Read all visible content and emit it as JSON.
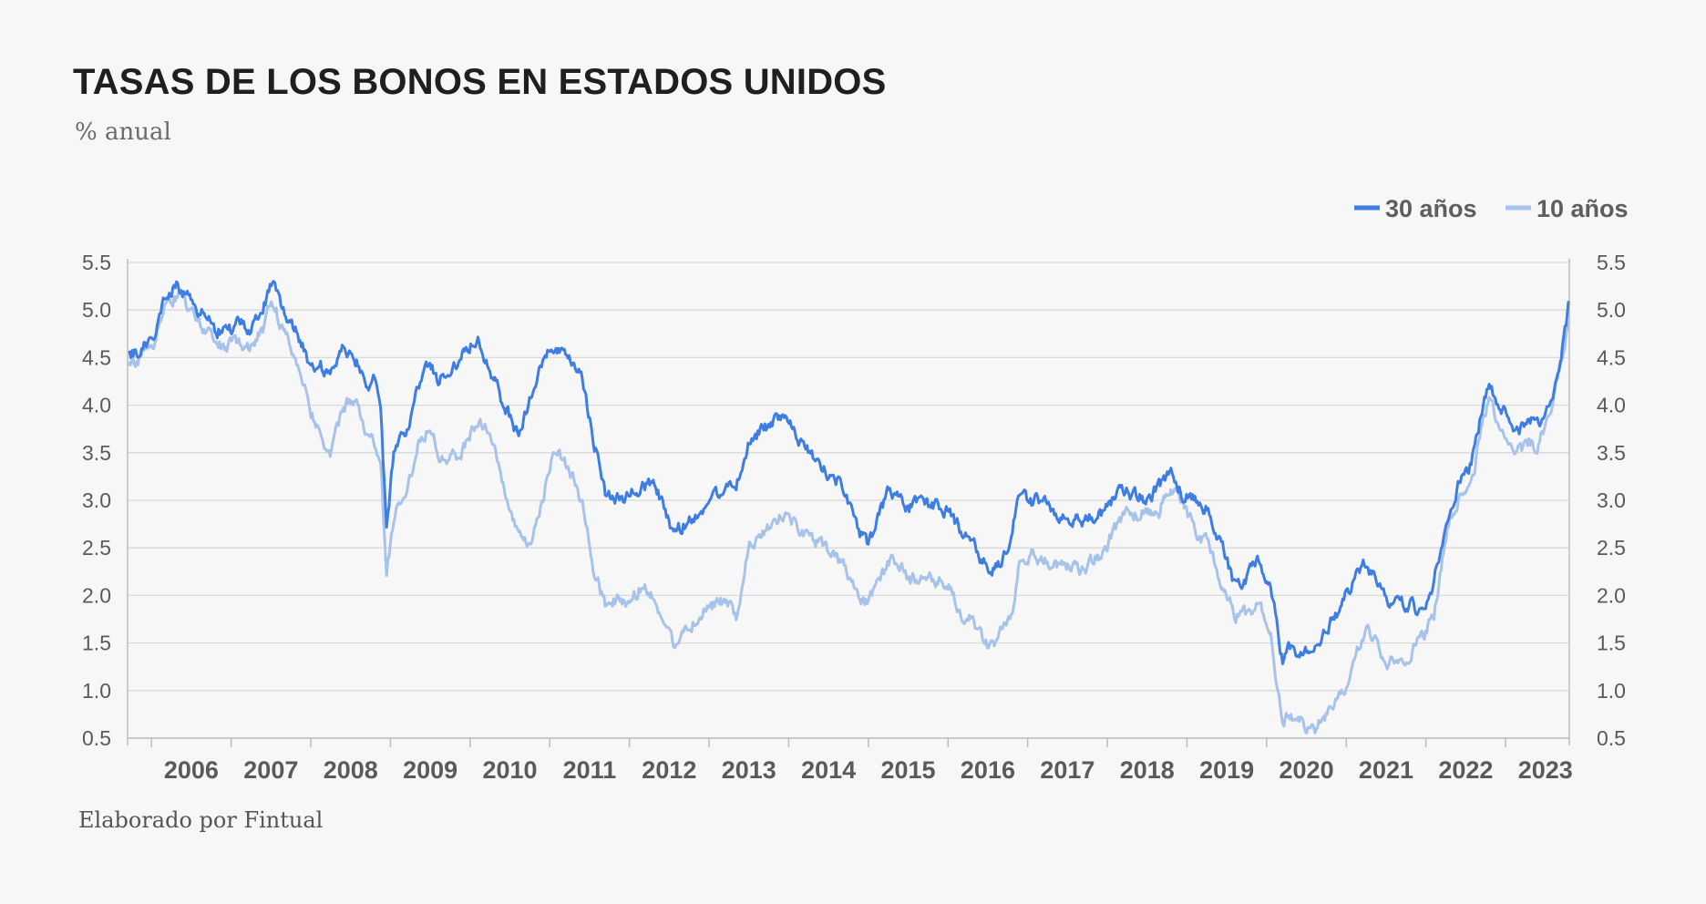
{
  "chart_data": {
    "type": "line",
    "title": "TASAS DE LOS BONOS EN ESTADOS UNIDOS",
    "subtitle": "% anual",
    "source": "Elaborado por Fintual",
    "xlabel": "",
    "ylabel": "",
    "xlim": [
      2005.7,
      2023.8
    ],
    "ylim": [
      0.5,
      5.5
    ],
    "y_ticks": [
      "0.5",
      "1.0",
      "1.5",
      "2.0",
      "2.5",
      "3.0",
      "3.5",
      "4.0",
      "4.5",
      "5.0",
      "5.5"
    ],
    "x_tick_labels": [
      "2006",
      "2007",
      "2008",
      "2009",
      "2010",
      "2011",
      "2012",
      "2013",
      "2014",
      "2015",
      "2016",
      "2017",
      "2018",
      "2019",
      "2020",
      "2021",
      "2022",
      "2023"
    ],
    "legend_position": "top-right",
    "grid": true,
    "series": [
      {
        "name": "30 años",
        "color": "#3d7de4",
        "x": [
          2005.71,
          2005.9,
          2006.05,
          2006.2,
          2006.35,
          2006.5,
          2006.65,
          2006.8,
          2006.95,
          2007.1,
          2007.25,
          2007.4,
          2007.5,
          2007.6,
          2007.75,
          2007.9,
          2008.0,
          2008.1,
          2008.25,
          2008.4,
          2008.5,
          2008.6,
          2008.7,
          2008.8,
          2008.88,
          2008.95,
          2009.05,
          2009.2,
          2009.35,
          2009.5,
          2009.6,
          2009.75,
          2009.9,
          2010.0,
          2010.1,
          2010.25,
          2010.4,
          2010.6,
          2010.75,
          2010.9,
          2011.0,
          2011.1,
          2011.25,
          2011.4,
          2011.55,
          2011.7,
          2011.85,
          2012.0,
          2012.15,
          2012.3,
          2012.42,
          2012.55,
          2012.7,
          2012.85,
          2013.0,
          2013.2,
          2013.35,
          2013.5,
          2013.65,
          2013.8,
          2013.95,
          2014.1,
          2014.3,
          2014.5,
          2014.7,
          2014.85,
          2015.0,
          2015.1,
          2015.25,
          2015.4,
          2015.5,
          2015.65,
          2015.8,
          2016.0,
          2016.15,
          2016.3,
          2016.45,
          2016.55,
          2016.65,
          2016.8,
          2016.9,
          2017.05,
          2017.2,
          2017.35,
          2017.5,
          2017.65,
          2017.8,
          2017.95,
          2018.1,
          2018.25,
          2018.35,
          2018.5,
          2018.65,
          2018.8,
          2018.95,
          2019.1,
          2019.25,
          2019.4,
          2019.6,
          2019.75,
          2019.9,
          2020.05,
          2020.15,
          2020.2,
          2020.3,
          2020.45,
          2020.6,
          2020.75,
          2020.9,
          2021.05,
          2021.2,
          2021.35,
          2021.5,
          2021.65,
          2021.8,
          2021.95,
          2022.1,
          2022.2,
          2022.3,
          2022.4,
          2022.5,
          2022.6,
          2022.7,
          2022.8,
          2022.95,
          2023.1,
          2023.2,
          2023.3,
          2023.4,
          2023.5,
          2023.6,
          2023.7,
          2023.79
        ],
        "y": [
          4.5,
          4.6,
          4.8,
          5.2,
          5.25,
          5.1,
          4.95,
          4.8,
          4.75,
          4.9,
          4.75,
          5.0,
          5.3,
          5.1,
          4.9,
          4.6,
          4.4,
          4.45,
          4.3,
          4.65,
          4.55,
          4.45,
          4.2,
          4.3,
          3.85,
          2.7,
          3.55,
          3.7,
          4.2,
          4.45,
          4.25,
          4.35,
          4.55,
          4.65,
          4.7,
          4.4,
          4.05,
          3.7,
          4.05,
          4.4,
          4.6,
          4.55,
          4.45,
          4.3,
          3.65,
          3.05,
          3.0,
          3.05,
          3.15,
          3.2,
          2.95,
          2.65,
          2.75,
          2.85,
          3.0,
          3.15,
          3.2,
          3.6,
          3.75,
          3.8,
          3.9,
          3.65,
          3.45,
          3.3,
          3.1,
          2.75,
          2.5,
          2.75,
          3.1,
          3.0,
          2.9,
          3.0,
          2.95,
          2.9,
          2.7,
          2.6,
          2.35,
          2.25,
          2.3,
          2.65,
          3.1,
          3.0,
          3.0,
          2.85,
          2.85,
          2.8,
          2.8,
          2.85,
          3.05,
          3.1,
          3.05,
          3.0,
          3.15,
          3.3,
          3.05,
          3.05,
          2.9,
          2.6,
          2.1,
          2.2,
          2.35,
          2.1,
          1.6,
          1.3,
          1.45,
          1.35,
          1.45,
          1.65,
          1.8,
          2.1,
          2.35,
          2.2,
          1.95,
          1.95,
          1.9,
          1.85,
          2.15,
          2.5,
          2.95,
          3.15,
          3.25,
          3.5,
          3.95,
          4.2,
          4.0,
          3.7,
          3.75,
          3.85,
          3.8,
          3.95,
          4.1,
          4.5,
          5.05
        ]
      },
      {
        "name": "10 años",
        "color": "#a7c3ec",
        "x": [
          2005.71,
          2005.9,
          2006.05,
          2006.2,
          2006.35,
          2006.5,
          2006.65,
          2006.8,
          2006.95,
          2007.1,
          2007.25,
          2007.4,
          2007.5,
          2007.6,
          2007.75,
          2007.9,
          2008.0,
          2008.1,
          2008.25,
          2008.4,
          2008.5,
          2008.6,
          2008.7,
          2008.8,
          2008.88,
          2008.95,
          2009.05,
          2009.2,
          2009.35,
          2009.5,
          2009.6,
          2009.75,
          2009.9,
          2010.0,
          2010.1,
          2010.25,
          2010.4,
          2010.6,
          2010.75,
          2010.9,
          2011.0,
          2011.1,
          2011.25,
          2011.4,
          2011.55,
          2011.7,
          2011.85,
          2012.0,
          2012.15,
          2012.3,
          2012.42,
          2012.55,
          2012.7,
          2012.85,
          2013.0,
          2013.2,
          2013.35,
          2013.5,
          2013.65,
          2013.8,
          2013.95,
          2014.1,
          2014.3,
          2014.5,
          2014.7,
          2014.85,
          2015.0,
          2015.1,
          2015.25,
          2015.4,
          2015.5,
          2015.65,
          2015.8,
          2016.0,
          2016.15,
          2016.3,
          2016.45,
          2016.55,
          2016.65,
          2016.8,
          2016.9,
          2017.05,
          2017.2,
          2017.35,
          2017.5,
          2017.65,
          2017.8,
          2017.95,
          2018.1,
          2018.25,
          2018.35,
          2018.5,
          2018.65,
          2018.8,
          2018.95,
          2019.1,
          2019.25,
          2019.4,
          2019.6,
          2019.75,
          2019.9,
          2020.05,
          2020.15,
          2020.2,
          2020.3,
          2020.45,
          2020.6,
          2020.75,
          2020.9,
          2021.05,
          2021.2,
          2021.35,
          2021.5,
          2021.65,
          2021.8,
          2021.95,
          2022.1,
          2022.2,
          2022.3,
          2022.4,
          2022.5,
          2022.6,
          2022.7,
          2022.8,
          2022.95,
          2023.1,
          2023.2,
          2023.3,
          2023.4,
          2023.5,
          2023.6,
          2023.7,
          2023.79
        ],
        "y": [
          4.4,
          4.55,
          4.7,
          5.1,
          5.15,
          5.0,
          4.8,
          4.65,
          4.6,
          4.7,
          4.6,
          4.8,
          5.15,
          4.9,
          4.6,
          4.3,
          3.95,
          3.75,
          3.45,
          3.95,
          4.05,
          3.95,
          3.7,
          3.6,
          3.3,
          2.25,
          2.85,
          3.1,
          3.6,
          3.8,
          3.5,
          3.45,
          3.5,
          3.7,
          3.85,
          3.7,
          3.2,
          2.6,
          2.5,
          2.95,
          3.4,
          3.5,
          3.3,
          3.0,
          2.3,
          1.9,
          1.95,
          1.9,
          2.1,
          2.0,
          1.75,
          1.5,
          1.65,
          1.75,
          1.9,
          1.95,
          1.75,
          2.5,
          2.6,
          2.75,
          2.9,
          2.7,
          2.6,
          2.45,
          2.3,
          2.0,
          1.9,
          2.1,
          2.35,
          2.35,
          2.15,
          2.2,
          2.2,
          2.1,
          1.8,
          1.75,
          1.55,
          1.45,
          1.6,
          1.8,
          2.4,
          2.45,
          2.35,
          2.3,
          2.3,
          2.25,
          2.35,
          2.45,
          2.7,
          2.9,
          2.85,
          2.9,
          2.9,
          3.15,
          2.95,
          2.7,
          2.55,
          2.2,
          1.8,
          1.8,
          1.9,
          1.6,
          0.95,
          0.7,
          0.7,
          0.65,
          0.6,
          0.75,
          0.9,
          1.15,
          1.6,
          1.6,
          1.3,
          1.3,
          1.4,
          1.55,
          1.8,
          2.3,
          2.85,
          3.0,
          3.05,
          3.25,
          3.8,
          4.05,
          3.75,
          3.5,
          3.55,
          3.6,
          3.55,
          3.8,
          4.1,
          4.45,
          4.95
        ]
      }
    ]
  }
}
